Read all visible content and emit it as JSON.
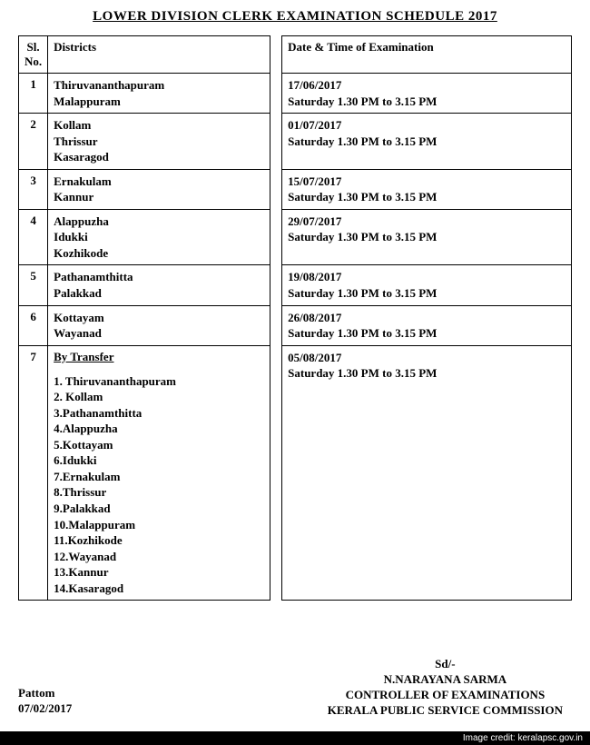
{
  "title": "LOWER  DIVISION CLERK  EXAMINATION SCHEDULE  2017",
  "table": {
    "headers": {
      "sl": "Sl. No.",
      "districts": "Districts",
      "date": "Date & Time of Examination"
    },
    "rows": [
      {
        "sl": "1",
        "districts": [
          "Thiruvananthapuram",
          "Malappuram"
        ],
        "date": [
          "17/06/2017",
          "Saturday 1.30 PM to 3.15 PM"
        ]
      },
      {
        "sl": "2",
        "districts": [
          "Kollam",
          "Thrissur",
          "Kasaragod"
        ],
        "date": [
          "01/07/2017",
          "Saturday 1.30 PM to 3.15 PM"
        ]
      },
      {
        "sl": "3",
        "districts": [
          "Ernakulam",
          "Kannur"
        ],
        "date": [
          "15/07/2017",
          "Saturday 1.30 PM to 3.15 PM"
        ]
      },
      {
        "sl": "4",
        "districts": [
          "Alappuzha",
          "Idukki",
          "Kozhikode"
        ],
        "date": [
          "29/07/2017",
          "Saturday 1.30 PM to 3.15 PM"
        ]
      },
      {
        "sl": "5",
        "districts": [
          "Pathanamthitta",
          "Palakkad"
        ],
        "date": [
          "19/08/2017",
          "Saturday 1.30 PM to 3.15 PM"
        ]
      },
      {
        "sl": "6",
        "districts": [
          "Kottayam",
          "Wayanad"
        ],
        "date": [
          "26/08/2017",
          "Saturday 1.30 PM to 3.15 PM"
        ]
      }
    ],
    "transfer_row": {
      "sl": "7",
      "heading": "By Transfer",
      "items": [
        "1. Thiruvananthapuram",
        "2. Kollam",
        "3.Pathanamthitta",
        "4.Alappuzha",
        "5.Kottayam",
        "6.Idukki",
        "7.Ernakulam",
        "8.Thrissur",
        "9.Palakkad",
        "10.Malappuram",
        "11.Kozhikode",
        "12.Wayanad",
        "13.Kannur",
        "14.Kasaragod"
      ],
      "date": [
        "05/08/2017",
        "Saturday 1.30 PM to 3.15 PM"
      ]
    }
  },
  "footer": {
    "left": {
      "place": "Pattom",
      "date": "07/02/2017"
    },
    "right": {
      "sd": "Sd/-",
      "name": "N.NARAYANA SARMA",
      "designation": "CONTROLLER OF EXAMINATIONS",
      "org": "KERALA PUBLIC SERVICE COMMISSION"
    }
  },
  "credit": "Image credit: keralapsc.gov.in"
}
